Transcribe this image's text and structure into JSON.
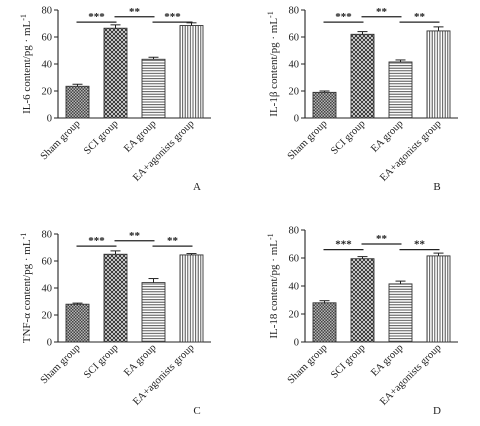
{
  "chart_data": [
    {
      "type": "bar",
      "panel_letter": "A",
      "ylabel": "IL-6 content/pg · mL",
      "ylabel_sup": "-1",
      "categories": [
        "Sham group",
        "SCI group",
        "EA group",
        "EA+agonists group"
      ],
      "values": [
        23.5,
        66.5,
        43.5,
        68.5
      ],
      "errors": [
        1.5,
        2.5,
        1.5,
        2.0
      ],
      "ylim": [
        0,
        80
      ],
      "yticks": [
        0,
        20,
        40,
        60,
        80
      ],
      "significance": [
        {
          "from": 0,
          "to": 1,
          "label": "***",
          "level": 71
        },
        {
          "from": 1,
          "to": 2,
          "label": "**",
          "level": 75
        },
        {
          "from": 2,
          "to": 3,
          "label": "***",
          "level": 71
        }
      ]
    },
    {
      "type": "bar",
      "panel_letter": "B",
      "ylabel": "IL-1β content/pg · mL",
      "ylabel_sup": "-1",
      "categories": [
        "Sham group",
        "SCI group",
        "EA group",
        "EA+agonists group"
      ],
      "values": [
        19.0,
        62.0,
        41.5,
        64.5
      ],
      "errors": [
        1.0,
        2.0,
        1.5,
        3.0
      ],
      "ylim": [
        0,
        80
      ],
      "yticks": [
        0,
        20,
        40,
        60,
        80
      ],
      "significance": [
        {
          "from": 0,
          "to": 1,
          "label": "***",
          "level": 71
        },
        {
          "from": 1,
          "to": 2,
          "label": "**",
          "level": 75
        },
        {
          "from": 2,
          "to": 3,
          "label": "**",
          "level": 71
        }
      ]
    },
    {
      "type": "bar",
      "panel_letter": "C",
      "ylabel": "TNF-α content/pg · mL",
      "ylabel_sup": "-1",
      "categories": [
        "Sham group",
        "SCI group",
        "EA group",
        "EA+agonists group"
      ],
      "values": [
        28.0,
        65.0,
        44.0,
        64.5
      ],
      "errors": [
        0.8,
        2.5,
        3.0,
        1.0
      ],
      "ylim": [
        0,
        80
      ],
      "yticks": [
        0,
        20,
        40,
        60,
        80
      ],
      "significance": [
        {
          "from": 0,
          "to": 1,
          "label": "***",
          "level": 71
        },
        {
          "from": 1,
          "to": 2,
          "label": "**",
          "level": 75
        },
        {
          "from": 2,
          "to": 3,
          "label": "**",
          "level": 71
        }
      ]
    },
    {
      "type": "bar",
      "panel_letter": "D",
      "ylabel": "IL-18 content/pg · mL",
      "ylabel_sup": "-1",
      "categories": [
        "Sham group",
        "SCI group",
        "EA group",
        "EA+agonists group"
      ],
      "values": [
        28.0,
        59.5,
        41.5,
        61.5
      ],
      "errors": [
        1.5,
        1.5,
        2.0,
        2.0
      ],
      "ylim": [
        0,
        80
      ],
      "yticks": [
        0,
        20,
        40,
        60,
        80
      ],
      "significance": [
        {
          "from": 0,
          "to": 1,
          "label": "***",
          "level": 66
        },
        {
          "from": 1,
          "to": 2,
          "label": "**",
          "level": 70
        },
        {
          "from": 2,
          "to": 3,
          "label": "**",
          "level": 66
        }
      ]
    }
  ],
  "patterns": [
    "checker",
    "diamond",
    "hlines",
    "vlines"
  ],
  "colors": {
    "axis": "#222222",
    "bar_stroke": "#333333",
    "fill_dark": "#555555",
    "fill_light": "#ffffff"
  }
}
